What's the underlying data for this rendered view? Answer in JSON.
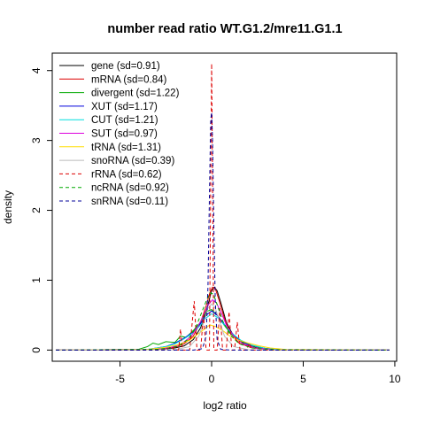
{
  "chart_data": {
    "type": "line",
    "title": "number read ratio WT.G1.2/mre11.G1.1",
    "xlabel": "log2 ratio",
    "ylabel": "density",
    "xlim": [
      -8.7,
      10.1
    ],
    "ylim": [
      -0.16,
      4.25
    ],
    "x_ticks": [
      -5,
      0,
      5,
      10
    ],
    "y_ticks": [
      0,
      1,
      2,
      3,
      4
    ],
    "legend_position": "top-left",
    "grid": false,
    "series": [
      {
        "name": "gene (sd=0.91)",
        "color": "#000000",
        "dash": "solid",
        "points": [
          [
            -8.5,
            0
          ],
          [
            -4,
            0.003
          ],
          [
            -3,
            0.01
          ],
          [
            -2,
            0.03
          ],
          [
            -1.5,
            0.06
          ],
          [
            -1,
            0.15
          ],
          [
            -0.6,
            0.32
          ],
          [
            -0.3,
            0.55
          ],
          [
            -0.1,
            0.75
          ],
          [
            0,
            0.85
          ],
          [
            0.15,
            0.9
          ],
          [
            0.3,
            0.85
          ],
          [
            0.5,
            0.68
          ],
          [
            0.8,
            0.4
          ],
          [
            1.2,
            0.2
          ],
          [
            1.8,
            0.08
          ],
          [
            2.5,
            0.03
          ],
          [
            4,
            0.005
          ],
          [
            9.7,
            0
          ]
        ]
      },
      {
        "name": "mRNA (sd=0.84)",
        "color": "#dd0000",
        "dash": "solid",
        "points": [
          [
            -8.5,
            0
          ],
          [
            -3,
            0.01
          ],
          [
            -2,
            0.04
          ],
          [
            -1.5,
            0.09
          ],
          [
            -1,
            0.2
          ],
          [
            -0.6,
            0.4
          ],
          [
            -0.3,
            0.63
          ],
          [
            -0.1,
            0.82
          ],
          [
            0.05,
            0.9
          ],
          [
            0.2,
            0.88
          ],
          [
            0.4,
            0.72
          ],
          [
            0.7,
            0.45
          ],
          [
            1,
            0.25
          ],
          [
            1.5,
            0.1
          ],
          [
            2.2,
            0.03
          ],
          [
            3.5,
            0.005
          ],
          [
            9.7,
            0
          ]
        ]
      },
      {
        "name": "divergent (sd=1.22)",
        "color": "#00aa00",
        "dash": "solid",
        "points": [
          [
            -8.5,
            0
          ],
          [
            -4,
            0.01
          ],
          [
            -3.5,
            0.05
          ],
          [
            -3.2,
            0.1
          ],
          [
            -2.9,
            0.08
          ],
          [
            -2.5,
            0.12
          ],
          [
            -2,
            0.11
          ],
          [
            -1.7,
            0.2
          ],
          [
            -1.4,
            0.18
          ],
          [
            -1,
            0.28
          ],
          [
            -0.6,
            0.4
          ],
          [
            -0.3,
            0.55
          ],
          [
            0,
            0.58
          ],
          [
            0.3,
            0.5
          ],
          [
            0.7,
            0.35
          ],
          [
            1.1,
            0.22
          ],
          [
            1.6,
            0.12
          ],
          [
            2.2,
            0.06
          ],
          [
            3,
            0.02
          ],
          [
            4,
            0.005
          ],
          [
            9.7,
            0
          ]
        ]
      },
      {
        "name": "XUT (sd=1.17)",
        "color": "#0000dd",
        "dash": "solid",
        "points": [
          [
            -8.5,
            0
          ],
          [
            -3.5,
            0.01
          ],
          [
            -2.5,
            0.05
          ],
          [
            -2,
            0.1
          ],
          [
            -1.5,
            0.17
          ],
          [
            -1,
            0.26
          ],
          [
            -0.6,
            0.38
          ],
          [
            -0.3,
            0.5
          ],
          [
            0,
            0.56
          ],
          [
            0.3,
            0.5
          ],
          [
            0.6,
            0.4
          ],
          [
            1,
            0.27
          ],
          [
            1.5,
            0.15
          ],
          [
            2,
            0.08
          ],
          [
            3,
            0.02
          ],
          [
            4,
            0.005
          ],
          [
            9.7,
            0
          ]
        ]
      },
      {
        "name": "CUT (sd=1.21)",
        "color": "#00dddd",
        "dash": "solid",
        "points": [
          [
            -8.5,
            0
          ],
          [
            -3.5,
            0.01
          ],
          [
            -2.5,
            0.05
          ],
          [
            -2,
            0.09
          ],
          [
            -1.5,
            0.16
          ],
          [
            -1,
            0.25
          ],
          [
            -0.6,
            0.36
          ],
          [
            -0.3,
            0.46
          ],
          [
            0,
            0.52
          ],
          [
            0.3,
            0.47
          ],
          [
            0.7,
            0.36
          ],
          [
            1.1,
            0.24
          ],
          [
            1.6,
            0.14
          ],
          [
            2.2,
            0.07
          ],
          [
            3,
            0.02
          ],
          [
            4,
            0.005
          ],
          [
            9.7,
            0
          ]
        ]
      },
      {
        "name": "SUT (sd=0.97)",
        "color": "#dd00dd",
        "dash": "solid",
        "points": [
          [
            -8.5,
            0
          ],
          [
            -3,
            0.01
          ],
          [
            -2.2,
            0.04
          ],
          [
            -1.6,
            0.1
          ],
          [
            -1.1,
            0.2
          ],
          [
            -0.7,
            0.36
          ],
          [
            -0.4,
            0.52
          ],
          [
            -0.15,
            0.66
          ],
          [
            0.05,
            0.72
          ],
          [
            0.25,
            0.68
          ],
          [
            0.5,
            0.55
          ],
          [
            0.8,
            0.36
          ],
          [
            1.2,
            0.2
          ],
          [
            1.7,
            0.09
          ],
          [
            2.4,
            0.03
          ],
          [
            3.5,
            0.005
          ],
          [
            9.7,
            0
          ]
        ]
      },
      {
        "name": "tRNA (sd=1.31)",
        "color": "#ffdd00",
        "dash": "solid",
        "points": [
          [
            -8.5,
            0
          ],
          [
            -3.5,
            0.01
          ],
          [
            -2.5,
            0.04
          ],
          [
            -1.8,
            0.08
          ],
          [
            -1.2,
            0.14
          ],
          [
            -0.8,
            0.22
          ],
          [
            -0.4,
            0.3
          ],
          [
            -0.1,
            0.36
          ],
          [
            0.2,
            0.34
          ],
          [
            0.6,
            0.28
          ],
          [
            1,
            0.2
          ],
          [
            1.5,
            0.14
          ],
          [
            2,
            0.1
          ],
          [
            2.6,
            0.06
          ],
          [
            3.2,
            0.03
          ],
          [
            4,
            0.01
          ],
          [
            9.7,
            0
          ]
        ]
      },
      {
        "name": "snoRNA (sd=0.39)",
        "color": "#bbbbbb",
        "dash": "solid",
        "points": [
          [
            -8.5,
            0
          ],
          [
            -2,
            0.005
          ],
          [
            -1.2,
            0.05
          ],
          [
            -0.7,
            0.2
          ],
          [
            -0.4,
            0.42
          ],
          [
            -0.2,
            0.6
          ],
          [
            0,
            0.66
          ],
          [
            0.2,
            0.6
          ],
          [
            0.4,
            0.44
          ],
          [
            0.7,
            0.2
          ],
          [
            1.2,
            0.05
          ],
          [
            2,
            0.005
          ],
          [
            9.7,
            0
          ]
        ]
      },
      {
        "name": "rRNA (sd=0.62)",
        "color": "#dd0000",
        "dash": "dashed",
        "points": [
          [
            -8.5,
            0
          ],
          [
            -2.5,
            0
          ],
          [
            -2.2,
            0.05
          ],
          [
            -2.05,
            0
          ],
          [
            -1.8,
            0
          ],
          [
            -1.7,
            0.3
          ],
          [
            -1.6,
            0
          ],
          [
            -1.2,
            0
          ],
          [
            -0.95,
            0.7
          ],
          [
            -0.8,
            0
          ],
          [
            -0.6,
            0
          ],
          [
            -0.45,
            0.5
          ],
          [
            -0.3,
            0
          ],
          [
            -0.12,
            0
          ],
          [
            0,
            4.1
          ],
          [
            0.12,
            0
          ],
          [
            0.3,
            0
          ],
          [
            0.45,
            0.6
          ],
          [
            0.6,
            0
          ],
          [
            0.8,
            0
          ],
          [
            0.95,
            0.55
          ],
          [
            1.1,
            0
          ],
          [
            1.25,
            0
          ],
          [
            1.4,
            0.4
          ],
          [
            1.55,
            0
          ],
          [
            1.9,
            0
          ],
          [
            2.05,
            0.1
          ],
          [
            2.2,
            0
          ],
          [
            9.7,
            0
          ]
        ]
      },
      {
        "name": "ncRNA (sd=0.92)",
        "color": "#00aa00",
        "dash": "dashed",
        "points": [
          [
            -8.5,
            0
          ],
          [
            -3,
            0.01
          ],
          [
            -2.3,
            0.03
          ],
          [
            -1.8,
            0.06
          ],
          [
            -1.3,
            0.15
          ],
          [
            -0.9,
            0.3
          ],
          [
            -0.6,
            0.5
          ],
          [
            -0.3,
            0.7
          ],
          [
            -0.1,
            0.82
          ],
          [
            0.1,
            0.8
          ],
          [
            0.3,
            0.65
          ],
          [
            0.6,
            0.42
          ],
          [
            1,
            0.22
          ],
          [
            1.5,
            0.09
          ],
          [
            2.2,
            0.03
          ],
          [
            3.5,
            0.005
          ],
          [
            9.7,
            0
          ]
        ]
      },
      {
        "name": "snRNA (sd=0.11)",
        "color": "#000099",
        "dash": "dashed",
        "points": [
          [
            -8.5,
            0
          ],
          [
            -1,
            0
          ],
          [
            -0.5,
            0.02
          ],
          [
            -0.3,
            0.2
          ],
          [
            -0.2,
            0.9
          ],
          [
            -0.12,
            2.2
          ],
          [
            -0.05,
            3.3
          ],
          [
            0,
            3.4
          ],
          [
            0.05,
            3.0
          ],
          [
            0.12,
            1.8
          ],
          [
            0.2,
            0.7
          ],
          [
            0.3,
            0.15
          ],
          [
            0.5,
            0.01
          ],
          [
            1,
            0
          ],
          [
            9.7,
            0
          ]
        ]
      }
    ]
  }
}
